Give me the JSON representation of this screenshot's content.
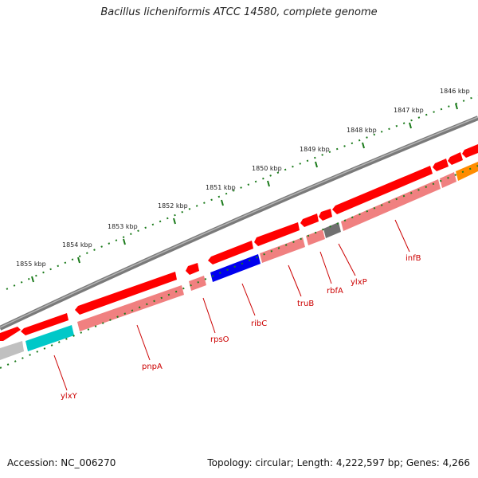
{
  "title": "Bacillus licheniformis ATCC 14580, complete genome",
  "footer": {
    "accession": "Accession: NC_006270",
    "summary": "Topology: circular; Length: 4,222,597 bp; Genes: 4,266"
  },
  "colors": {
    "backbone": "#7a7a7a",
    "tick": "#1a7a1a",
    "gene_red": "#ff0000",
    "gene_pink": "#f08080",
    "gene_blue": "#0000ee",
    "gene_cyan": "#00c8c8",
    "gene_gray": "#707070",
    "gene_lightgray": "#c0c0c0",
    "gene_orange": "#ff8c00",
    "label": "#cc0000"
  },
  "kbp_labels": [
    "1855 kbp",
    "1854 kbp",
    "1853 kbp",
    "1852 kbp",
    "1851 kbp",
    "1850 kbp",
    "1849 kbp",
    "1848 kbp",
    "1847 kbp",
    "1846 kbp"
  ],
  "genes": [
    {
      "name": "ylxY",
      "color": "gene_cyan"
    },
    {
      "name": "pnpA",
      "color": "gene_pink"
    },
    {
      "name": "rpsO",
      "color": "gene_pink"
    },
    {
      "name": "ribC",
      "color": "gene_blue"
    },
    {
      "name": "truB",
      "color": "gene_pink"
    },
    {
      "name": "rbfA",
      "color": "gene_pink"
    },
    {
      "name": "ylxP",
      "color": "gene_gray"
    },
    {
      "name": "infB",
      "color": "gene_pink"
    }
  ]
}
